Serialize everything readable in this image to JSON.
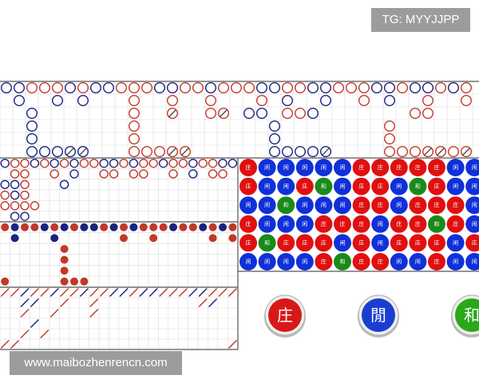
{
  "watermark_top": "TG: MYYJJPP",
  "watermark_bottom": "www.maibozhenrencn.com",
  "colors": {
    "r": "#c0392b",
    "b": "#1a237e"
  },
  "big_road": {
    "rows": [
      "bbrrrbrbbrrrbbrrbrrrbbrrbbrrrbbrbbrbr",
      ".b..b.b...r..r..r...r.b..b..r.b..r..r",
      "..b.......r..R..rR.bb.rrb.......rr...",
      "..b.......r..........b........r......",
      "..b.......r..........b........r......",
      "..bbbBB...rrrRR......bbbbB....rrrRRrR"
    ]
  },
  "big_eye_road": {
    "rows": [
      "brrbrbrbrrbbrbrrbrrbrrbb",
      ".rr..r.b..rr.rr..r.b.rr.",
      "bbr...b.................",
      "rbr.....................",
      "rrrr....................",
      ".bb....................."
    ]
  },
  "small_road": {
    "rows": [
      "rbrrbrbrbbrbrbrrrbrrbrbr",
      ".b...b......r..r.....r.r",
      "......r.................",
      "......r.................",
      "......r.................",
      "r.....rrr..............."
    ]
  },
  "cockroach_road": {
    "rows": [
      "rrbrrbrrbrrbbrbbrrrbbrrr",
      "..bb..r..r..........rb..",
      "..r..r...r..............",
      "...b....................",
      "..r.r...................",
      "rr.....................r"
    ]
  },
  "bead_plate": {
    "colors": {
      "庄": "#e01010",
      "闲": "#1030d8",
      "和": "#1a8a1a"
    },
    "rows": [
      [
        "庄",
        "闲",
        "闲",
        "闲",
        "闲",
        "闲",
        "庄",
        "庄",
        "庄",
        "庄",
        "庄",
        "闲",
        "闲"
      ],
      [
        "庄",
        "闲",
        "闲",
        "庄",
        "和",
        "闲",
        "庄",
        "庄",
        "闲",
        "和",
        "庄",
        "闲",
        "闲"
      ],
      [
        "闲",
        "闲",
        "和",
        "闲",
        "闲",
        "闲",
        "庄",
        "庄",
        "闲",
        "庄",
        "庄",
        "庄",
        "闲"
      ],
      [
        "庄",
        "闲",
        "闲",
        "闲",
        "庄",
        "庄",
        "庄",
        "闲",
        "庄",
        "庄",
        "和",
        "庄",
        "闲"
      ],
      [
        "庄",
        "和",
        "庄",
        "庄",
        "庄",
        "闲",
        "庄",
        "闲",
        "庄",
        "庄",
        "庄",
        "闲",
        "庄"
      ],
      [
        "闲",
        "闲",
        "闲",
        "闲",
        "庄",
        "和",
        "庄",
        "庄",
        "闲",
        "闲",
        "庄",
        "闲",
        "闲"
      ]
    ]
  },
  "buttons": [
    {
      "label": "庄",
      "color": "#d81818"
    },
    {
      "label": "閒",
      "color": "#1a3fd0"
    },
    {
      "label": "和",
      "color": "#2aa81a"
    }
  ]
}
